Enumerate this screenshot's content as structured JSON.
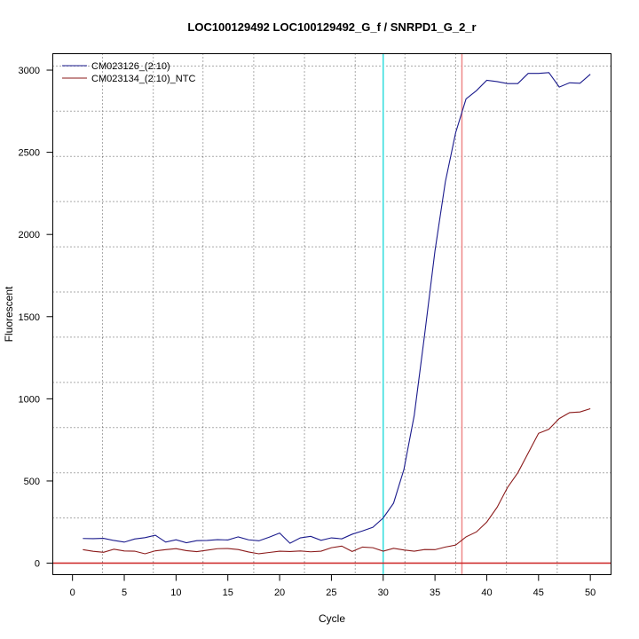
{
  "chart_data": {
    "type": "line",
    "title": "LOC100129492  LOC100129492_G_f / SNRPD1_G_2_r",
    "xlabel": "Cycle",
    "ylabel": "Fluorescent",
    "xlim": [
      -1.9,
      52.0
    ],
    "ylim": [
      -70,
      3100
    ],
    "xticks": [
      0,
      5,
      10,
      15,
      20,
      25,
      30,
      35,
      40,
      45,
      50
    ],
    "yticks": [
      0,
      500,
      1000,
      1500,
      2000,
      2500,
      3000
    ],
    "x_minor_grid": [
      2.9,
      7.8,
      12.6,
      17.5,
      22.4,
      27.3,
      32.1,
      37.0,
      41.9,
      46.8
    ],
    "y_minor_grid": [
      275,
      550,
      825,
      1100,
      1375,
      1650,
      1925,
      2200,
      2475,
      2750,
      3025
    ],
    "grid": "dotted",
    "legend_position": "top-left",
    "threshold": 0,
    "threshold_color": "#cc2222",
    "vlines": [
      {
        "x": 30.0,
        "color": "#33dddd"
      },
      {
        "x": 37.6,
        "color": "#ee8888"
      }
    ],
    "x": [
      1,
      2,
      3,
      4,
      5,
      6,
      7,
      8,
      9,
      10,
      11,
      12,
      13,
      14,
      15,
      16,
      17,
      18,
      19,
      20,
      21,
      22,
      23,
      24,
      25,
      26,
      27,
      28,
      29,
      30,
      31,
      32,
      33,
      34,
      35,
      36,
      37,
      38,
      39,
      40,
      41,
      42,
      43,
      44,
      45,
      46,
      47,
      48,
      49,
      50
    ],
    "series": [
      {
        "name": "CM023126_(2:10)",
        "color": "#1a1a8c",
        "values": [
          150,
          149,
          151,
          138,
          128,
          147,
          155,
          170,
          128,
          142,
          124,
          137,
          138,
          143,
          141,
          160,
          142,
          136,
          158,
          183,
          121,
          154,
          163,
          139,
          154,
          148,
          176,
          196,
          218,
          275,
          365,
          570,
          900,
          1390,
          1900,
          2320,
          2620,
          2825,
          2875,
          2938,
          2930,
          2918,
          2918,
          2980,
          2980,
          2985,
          2897,
          2923,
          2920,
          2975
        ]
      },
      {
        "name": "CM023134_(2:10)_NTC",
        "color": "#8b1a1a",
        "values": [
          82,
          72,
          66,
          85,
          74,
          73,
          57,
          75,
          82,
          88,
          76,
          70,
          79,
          88,
          89,
          83,
          68,
          57,
          65,
          73,
          71,
          74,
          69,
          73,
          94,
          104,
          71,
          98,
          94,
          73,
          90,
          80,
          73,
          83,
          82,
          98,
          110,
          160,
          190,
          250,
          340,
          460,
          550,
          670,
          790,
          815,
          880,
          916,
          920,
          940
        ]
      }
    ]
  }
}
